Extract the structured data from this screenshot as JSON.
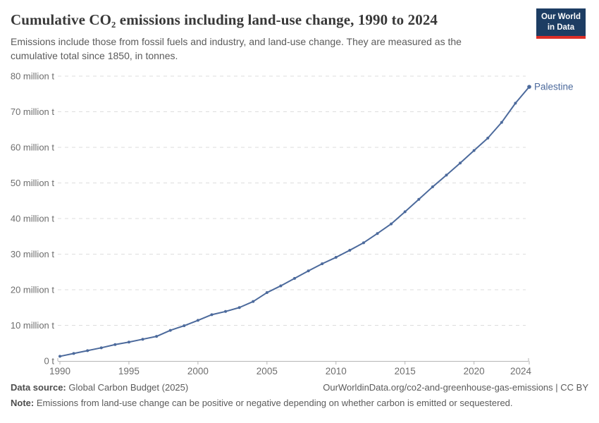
{
  "header": {
    "title": "Cumulative CO₂ emissions including land-use change, 1990 to 2024",
    "subtitle": "Emissions include those from fossil fuels and industry, and land-use change. They are measured as the cumulative total since 1850, in tonnes.",
    "logo": {
      "line1": "Our World",
      "line2": "in Data"
    }
  },
  "chart_data": {
    "type": "line",
    "title": "Cumulative CO₂ emissions including land-use change, 1990 to 2024",
    "xlabel": "",
    "ylabel": "",
    "xlim": [
      1990,
      2024
    ],
    "ylim": [
      0,
      80
    ],
    "grid": true,
    "legend_position": "line-end",
    "x": [
      1990,
      1991,
      1992,
      1993,
      1994,
      1995,
      1996,
      1997,
      1998,
      1999,
      2000,
      2001,
      2002,
      2003,
      2004,
      2005,
      2006,
      2007,
      2008,
      2009,
      2010,
      2011,
      2012,
      2013,
      2014,
      2015,
      2016,
      2017,
      2018,
      2019,
      2020,
      2021,
      2022,
      2023,
      2024
    ],
    "series": [
      {
        "name": "Palestine",
        "color": "#4C6A9C",
        "values": [
          1.3,
          2.1,
          2.9,
          3.7,
          4.6,
          5.3,
          6.1,
          6.9,
          8.6,
          9.9,
          11.4,
          13.0,
          13.9,
          15.0,
          16.7,
          19.2,
          21.1,
          23.2,
          25.3,
          27.3,
          29.1,
          31.1,
          33.2,
          35.8,
          38.5,
          41.9,
          45.4,
          48.9,
          52.2,
          55.6,
          59.1,
          62.6,
          67.0,
          72.4,
          77.0
        ]
      }
    ],
    "y_ticks": [
      {
        "value": 0,
        "label": "0 t"
      },
      {
        "value": 10,
        "label": "10 million t"
      },
      {
        "value": 20,
        "label": "20 million t"
      },
      {
        "value": 30,
        "label": "30 million t"
      },
      {
        "value": 40,
        "label": "40 million t"
      },
      {
        "value": 50,
        "label": "50 million t"
      },
      {
        "value": 60,
        "label": "60 million t"
      },
      {
        "value": 70,
        "label": "70 million t"
      },
      {
        "value": 80,
        "label": "80 million t"
      }
    ],
    "x_ticks": [
      {
        "value": 1990,
        "label": "1990"
      },
      {
        "value": 1995,
        "label": "1995"
      },
      {
        "value": 2000,
        "label": "2000"
      },
      {
        "value": 2005,
        "label": "2005"
      },
      {
        "value": 2010,
        "label": "2010"
      },
      {
        "value": 2015,
        "label": "2015"
      },
      {
        "value": 2020,
        "label": "2020"
      },
      {
        "value": 2024,
        "label": "2024"
      }
    ],
    "colors": {
      "line": "#4C6A9C",
      "grid": "#dddddd",
      "axis": "#b5b5b5",
      "tick_text": "#6e6e6e"
    }
  },
  "footer": {
    "source_label": "Data source:",
    "source_text": "Global Carbon Budget (2025)",
    "credit": "OurWorldinData.org/co2-and-greenhouse-gas-emissions | CC BY",
    "note_label": "Note:",
    "note_text": "Emissions from land-use change can be positive or negative depending on whether carbon is emitted or sequestered."
  }
}
